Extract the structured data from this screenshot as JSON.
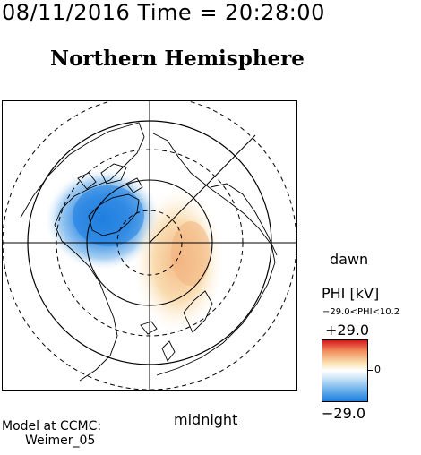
{
  "header": {
    "timestamp": "08/11/2016 Time = 20:28:00",
    "title": "Northern Hemisphere"
  },
  "map": {
    "projection": "polar-magnetic",
    "labels": {
      "dawn": "dawn",
      "midnight": "midnight"
    },
    "colors": {
      "positive": "#d7191c",
      "negative": "#1f7fe0",
      "coastline": "#000000"
    }
  },
  "colorbar": {
    "title": "PHI [kV]",
    "range_text": "−29.0<PHI<10.2",
    "max_label": "+29.0",
    "zero_label": "0",
    "min_label": "−29.0",
    "max_value": 29.0,
    "min_value": -29.0
  },
  "credit": {
    "line1": "Model at CCMC:",
    "line2": "Weimer_05"
  }
}
